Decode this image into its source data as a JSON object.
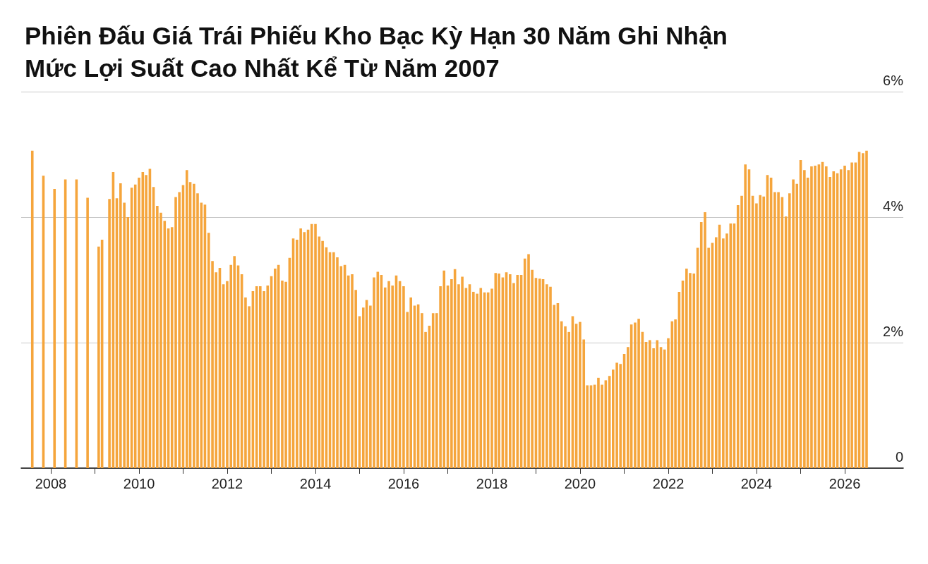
{
  "chart_data": {
    "type": "bar",
    "title": "Phiên Đấu Giá Trái Phiếu Kho Bạc Kỳ Hạn 30 Năm Ghi Nhận Mức Lợi Suất Cao Nhất Kể Từ Năm 2007",
    "x": [
      "2007-08",
      "2007-11",
      "2008-02",
      "2008-05",
      "2008-08",
      "2008-11",
      "2009-02",
      "2009-03",
      "2009-05",
      "2009-06",
      "2009-07",
      "2009-08",
      "2009-09",
      "2009-10",
      "2009-11",
      "2009-12",
      "2010-01",
      "2010-02",
      "2010-03",
      "2010-04",
      "2010-05",
      "2010-06",
      "2010-07",
      "2010-08",
      "2010-09",
      "2010-10",
      "2010-11",
      "2010-12",
      "2011-01",
      "2011-02",
      "2011-03",
      "2011-04",
      "2011-05",
      "2011-06",
      "2011-07",
      "2011-08",
      "2011-09",
      "2011-10",
      "2011-11",
      "2011-12",
      "2012-01",
      "2012-02",
      "2012-03",
      "2012-04",
      "2012-05",
      "2012-06",
      "2012-07",
      "2012-08",
      "2012-09",
      "2012-10",
      "2012-11",
      "2012-12",
      "2013-01",
      "2013-02",
      "2013-03",
      "2013-04",
      "2013-05",
      "2013-06",
      "2013-07",
      "2013-08",
      "2013-09",
      "2013-10",
      "2013-11",
      "2013-12",
      "2014-01",
      "2014-02",
      "2014-03",
      "2014-04",
      "2014-05",
      "2014-06",
      "2014-07",
      "2014-08",
      "2014-09",
      "2014-10",
      "2014-11",
      "2014-12",
      "2015-01",
      "2015-02",
      "2015-03",
      "2015-04",
      "2015-05",
      "2015-06",
      "2015-07",
      "2015-08",
      "2015-09",
      "2015-10",
      "2015-11",
      "2015-12",
      "2016-01",
      "2016-02",
      "2016-03",
      "2016-04",
      "2016-05",
      "2016-06",
      "2016-07",
      "2016-08",
      "2016-09",
      "2016-10",
      "2016-11",
      "2016-12",
      "2017-01",
      "2017-02",
      "2017-03",
      "2017-04",
      "2017-05",
      "2017-06",
      "2017-07",
      "2017-08",
      "2017-09",
      "2017-10",
      "2017-11",
      "2017-12",
      "2018-01",
      "2018-02",
      "2018-03",
      "2018-04",
      "2018-05",
      "2018-06",
      "2018-07",
      "2018-08",
      "2018-09",
      "2018-10",
      "2018-11",
      "2018-12",
      "2019-01",
      "2019-02",
      "2019-03",
      "2019-04",
      "2019-05",
      "2019-06",
      "2019-07",
      "2019-08",
      "2019-09",
      "2019-10",
      "2019-11",
      "2019-12",
      "2020-01",
      "2020-02",
      "2020-03",
      "2020-04",
      "2020-05",
      "2020-06",
      "2020-07",
      "2020-08",
      "2020-09",
      "2020-10",
      "2020-11",
      "2020-12",
      "2021-01",
      "2021-02",
      "2021-03",
      "2021-04",
      "2021-05",
      "2021-06",
      "2021-07",
      "2021-08",
      "2021-09",
      "2021-10",
      "2021-11",
      "2021-12",
      "2022-01",
      "2022-02",
      "2022-03",
      "2022-04",
      "2022-05",
      "2022-06",
      "2022-07",
      "2022-08",
      "2022-09",
      "2022-10",
      "2022-11",
      "2022-12",
      "2023-01",
      "2023-02",
      "2023-03",
      "2023-04",
      "2023-05",
      "2023-06",
      "2023-07",
      "2023-08",
      "2023-09",
      "2023-10",
      "2023-11",
      "2023-12",
      "2024-01",
      "2024-02",
      "2024-03",
      "2024-04",
      "2024-05",
      "2024-06",
      "2024-07",
      "2024-08",
      "2024-09",
      "2024-10",
      "2024-11",
      "2024-12",
      "2025-01",
      "2025-02",
      "2025-03",
      "2025-04",
      "2025-05",
      "2025-06",
      "2025-07",
      "2025-08",
      "2025-09",
      "2025-10",
      "2025-11",
      "2025-12",
      "2026-01",
      "2026-02",
      "2026-03",
      "2026-04",
      "2026-05",
      "2026-06",
      "2026-07"
    ],
    "values": [
      5.06,
      4.66,
      4.45,
      4.6,
      4.6,
      4.31,
      3.53,
      3.64,
      4.29,
      4.72,
      4.3,
      4.54,
      4.23,
      4.0,
      4.47,
      4.52,
      4.63,
      4.72,
      4.67,
      4.77,
      4.48,
      4.18,
      4.07,
      3.94,
      3.82,
      3.84,
      4.32,
      4.4,
      4.51,
      4.75,
      4.56,
      4.53,
      4.38,
      4.23,
      4.2,
      3.75,
      3.3,
      3.12,
      3.19,
      2.93,
      2.98,
      3.24,
      3.38,
      3.23,
      3.09,
      2.72,
      2.58,
      2.82,
      2.9,
      2.9,
      2.82,
      2.91,
      3.06,
      3.18,
      3.24,
      2.99,
      2.97,
      3.35,
      3.66,
      3.64,
      3.82,
      3.76,
      3.8,
      3.89,
      3.89,
      3.69,
      3.62,
      3.52,
      3.44,
      3.44,
      3.36,
      3.22,
      3.24,
      3.07,
      3.09,
      2.84,
      2.42,
      2.56,
      2.68,
      2.59,
      3.04,
      3.13,
      3.08,
      2.88,
      2.98,
      2.91,
      3.07,
      2.98,
      2.9,
      2.49,
      2.72,
      2.59,
      2.61,
      2.47,
      2.17,
      2.27,
      2.47,
      2.47,
      2.9,
      3.15,
      2.91,
      3.01,
      3.17,
      2.93,
      3.05,
      2.87,
      2.93,
      2.81,
      2.78,
      2.87,
      2.8,
      2.8,
      2.86,
      3.11,
      3.1,
      3.04,
      3.12,
      3.09,
      2.95,
      3.08,
      3.08,
      3.34,
      3.41,
      3.16,
      3.03,
      3.02,
      3.01,
      2.93,
      2.89,
      2.6,
      2.63,
      2.34,
      2.26,
      2.17,
      2.42,
      2.3,
      2.33,
      2.05,
      1.32,
      1.32,
      1.33,
      1.44,
      1.33,
      1.4,
      1.47,
      1.57,
      1.68,
      1.66,
      1.82,
      1.93,
      2.29,
      2.32,
      2.38,
      2.17,
      2.01,
      2.04,
      1.91,
      2.04,
      1.93,
      1.89,
      2.07,
      2.34,
      2.37,
      2.81,
      2.99,
      3.18,
      3.11,
      3.1,
      3.51,
      3.92,
      4.08,
      3.51,
      3.59,
      3.68,
      3.88,
      3.66,
      3.74,
      3.9,
      3.9,
      4.19,
      4.34,
      4.84,
      4.76,
      4.34,
      4.22,
      4.35,
      4.33,
      4.67,
      4.63,
      4.4,
      4.4,
      4.32,
      4.01,
      4.38,
      4.6,
      4.53,
      4.91,
      4.75,
      4.63,
      4.81,
      4.82,
      4.84,
      4.88,
      4.81,
      4.64,
      4.73,
      4.7,
      4.76,
      4.82,
      4.75,
      4.87,
      4.87,
      5.04,
      5.02,
      5.06
    ],
    "color": "#f5a53c",
    "xlim": [
      "2007-05",
      "2027-05"
    ],
    "xticks": [
      "2008",
      {
        "value": "2009",
        "label": null
      },
      "2010",
      {
        "value": "2011",
        "label": null
      },
      "2012",
      {
        "value": "2013",
        "label": null
      },
      "2014",
      {
        "value": "2015",
        "label": null
      },
      "2016",
      {
        "value": "2017",
        "label": null
      },
      "2018",
      {
        "value": "2019",
        "label": null
      },
      "2020",
      {
        "value": "2021",
        "label": null
      },
      "2022",
      {
        "value": "2023",
        "label": null
      },
      "2024",
      {
        "value": "2025",
        "label": null
      },
      "2026"
    ],
    "ylim": [
      0,
      6
    ],
    "yticks": [
      0,
      {
        "value": 2,
        "label": "2%"
      },
      {
        "value": 4,
        "label": "4%"
      },
      {
        "value": 6,
        "label": "6%"
      }
    ],
    "grid": "y"
  }
}
